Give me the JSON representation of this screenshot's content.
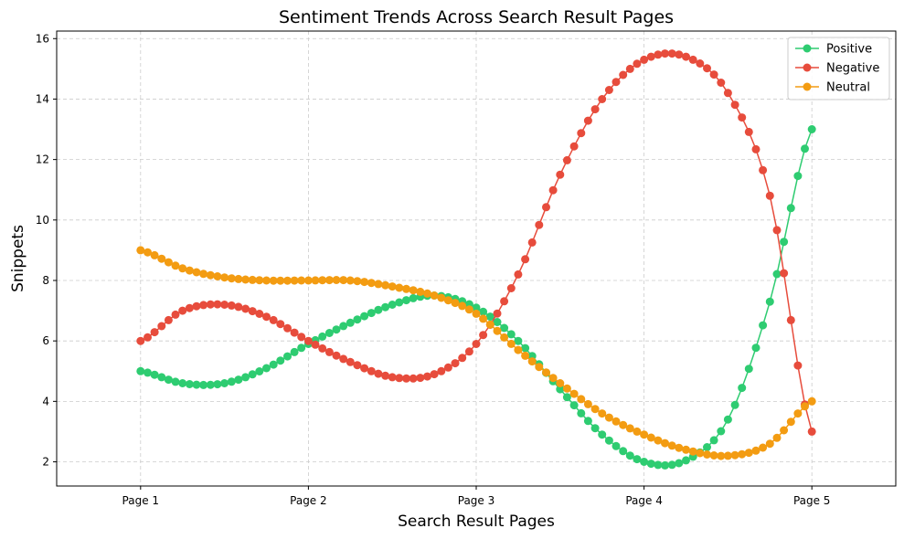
{
  "chart_data": {
    "type": "line",
    "title": "Sentiment Trends Across Search Result Pages",
    "xlabel": "Search Result Pages",
    "ylabel": "Snippets",
    "categories": [
      "Page 1",
      "Page 2",
      "Page 3",
      "Page 4",
      "Page 5"
    ],
    "xlim": [
      0.5,
      5.5
    ],
    "ylim": [
      1.2,
      16.25
    ],
    "yticks": [
      2,
      4,
      6,
      8,
      10,
      12,
      14,
      16
    ],
    "grid": true,
    "legend_position": "top-right",
    "series": [
      {
        "name": "Positive",
        "color": "#2ecc71",
        "x": [
          1,
          1.25,
          1.5,
          1.75,
          2,
          2.25,
          2.5,
          2.75,
          3,
          3.25,
          3.5,
          3.75,
          4,
          4.25,
          4.5,
          4.75,
          5
        ],
        "y": [
          5,
          4.6,
          4.6,
          5.1,
          5.9,
          6.6,
          7.2,
          7.5,
          7.1,
          6.0,
          4.4,
          2.9,
          2.0,
          2.05,
          3.4,
          7.3,
          13
        ]
      },
      {
        "name": "Negative",
        "color": "#e74c3c",
        "x": [
          1,
          1.25,
          1.5,
          1.75,
          2,
          2.25,
          2.5,
          2.75,
          3,
          3.25,
          3.5,
          3.75,
          4,
          4.25,
          4.5,
          4.75,
          5
        ],
        "y": [
          6,
          7.0,
          7.2,
          6.8,
          6.0,
          5.3,
          4.8,
          4.9,
          5.9,
          8.2,
          11.5,
          14.0,
          15.3,
          15.4,
          14.2,
          10.8,
          3
        ]
      },
      {
        "name": "Neutral",
        "color": "#f39c12",
        "x": [
          1,
          1.25,
          1.5,
          1.75,
          2,
          2.25,
          2.5,
          2.75,
          3,
          3.25,
          3.5,
          3.75,
          4,
          4.25,
          4.5,
          4.75,
          5
        ],
        "y": [
          9,
          8.4,
          8.1,
          8.0,
          8.0,
          8.0,
          7.8,
          7.5,
          6.9,
          5.7,
          4.6,
          3.6,
          2.9,
          2.4,
          2.2,
          2.6,
          4
        ]
      }
    ]
  }
}
